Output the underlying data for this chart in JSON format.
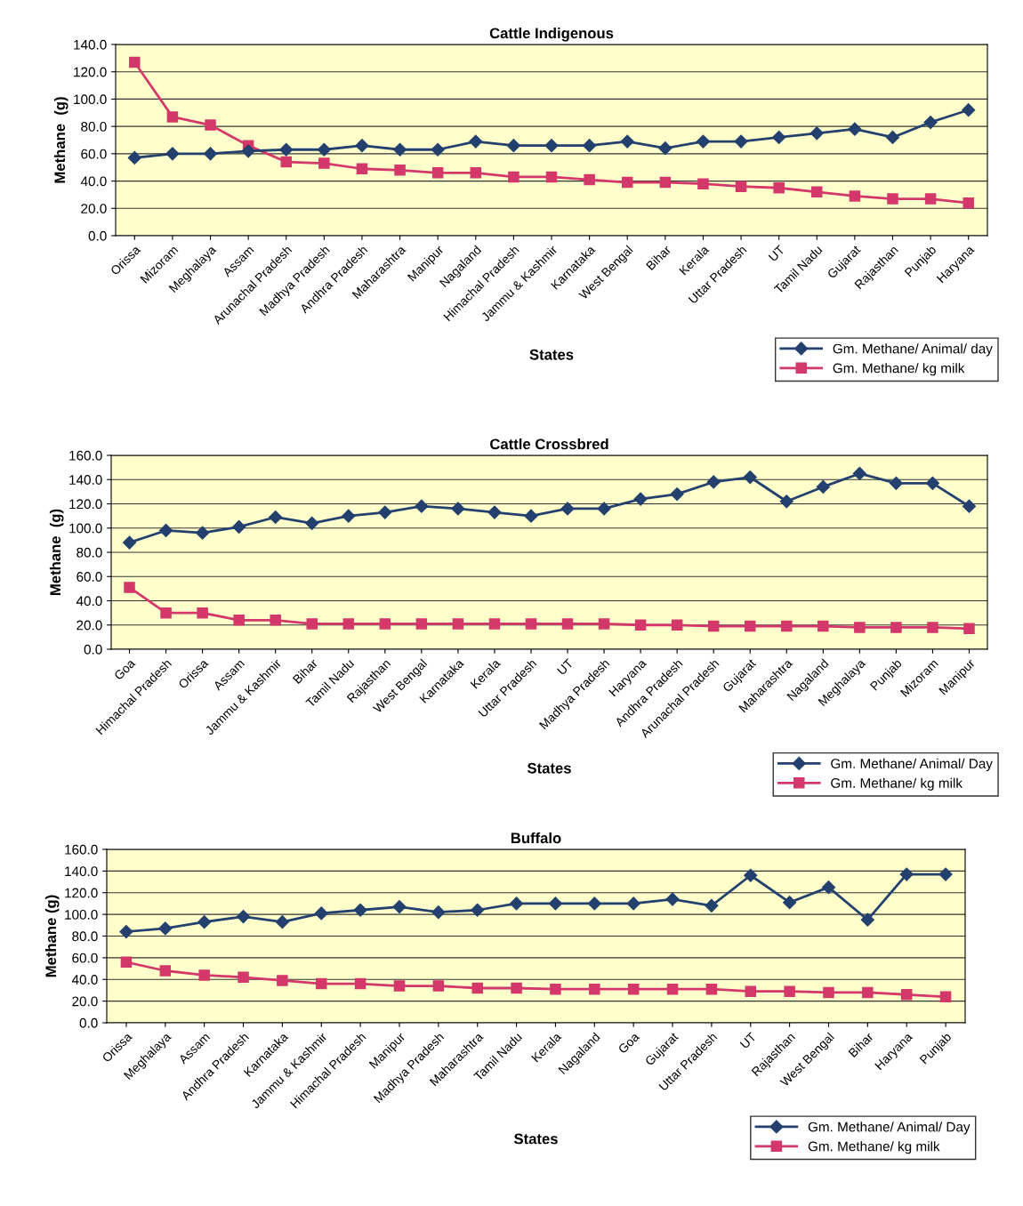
{
  "chart_data": [
    {
      "type": "line",
      "title": "Cattle Indigenous",
      "xlabel": "States",
      "ylabel": "Methane  (g)",
      "legend": "bottom right",
      "grid": "y",
      "ylim": [
        0,
        140
      ],
      "yticks": [
        {
          "value": 0,
          "label": "0.0"
        },
        {
          "value": 20,
          "label": "20.0"
        },
        {
          "value": 40,
          "label": "40.0"
        },
        {
          "value": 60,
          "label": "60.0"
        },
        {
          "value": 80,
          "label": "80.0"
        },
        {
          "value": 100,
          "label": "100.0"
        },
        {
          "value": 120,
          "label": "120.0"
        },
        {
          "value": 140,
          "label": "140.0"
        }
      ],
      "categories": [
        "Orissa",
        "Mizoram",
        "Meghalaya",
        "Assam",
        "Arunachal Pradesh",
        "Madhya Pradesh",
        "Andhra Pradesh",
        "Maharashtra",
        "Manipur",
        "Nagaland",
        "Himachal Pradesh",
        "Jammu & Kashmir",
        "Karnataka",
        "West Bengal",
        "Bihar",
        "Kerala",
        "Uttar Pradesh",
        "UT",
        "Tamil Nadu",
        "Gujarat",
        "Rajasthan",
        "Punjab",
        "Haryana"
      ],
      "series": [
        {
          "name": "Gm. Methane/ Animal/ day",
          "color": "#23406e",
          "marker": "diamond",
          "values": [
            57,
            60,
            60,
            62,
            63,
            63,
            66,
            63,
            63,
            69,
            66,
            66,
            66,
            69,
            64,
            69,
            69,
            72,
            75,
            78,
            72,
            83,
            92
          ]
        },
        {
          "name": "Gm. Methane/ kg milk",
          "color": "#d4386a",
          "marker": "square",
          "values": [
            127,
            87,
            81,
            66,
            54,
            53,
            49,
            48,
            46,
            46,
            43,
            43,
            41,
            39,
            39,
            38,
            36,
            35,
            32,
            29,
            27,
            27,
            24
          ]
        }
      ]
    },
    {
      "type": "line",
      "title": "Cattle Crossbred",
      "xlabel": "States",
      "ylabel": "Methane  (g)",
      "legend": "bottom right",
      "grid": "y",
      "ylim": [
        0,
        160
      ],
      "yticks": [
        {
          "value": 0,
          "label": "0.0"
        },
        {
          "value": 20,
          "label": "20.0"
        },
        {
          "value": 40,
          "label": "40.0"
        },
        {
          "value": 60,
          "label": "60.0"
        },
        {
          "value": 80,
          "label": "80.0"
        },
        {
          "value": 100,
          "label": "100.0"
        },
        {
          "value": 120,
          "label": "120.0"
        },
        {
          "value": 140,
          "label": "140.0"
        },
        {
          "value": 160,
          "label": "160.0"
        }
      ],
      "categories": [
        "Goa",
        "Himachal Pradesh",
        "Orissa",
        "Assam",
        "Jammu & Kashmir",
        "Bihar",
        "Tamil Nadu",
        "Rajasthan",
        "West Bengal",
        "Karnataka",
        "Kerala",
        "Uttar Pradesh",
        "UT",
        "Madhya Pradesh",
        "Haryana",
        "Andhra Pradesh",
        "Arunachal Pradesh",
        "Gujarat",
        "Maharashtra",
        "Nagaland",
        "Meghalaya",
        "Punjab",
        "Mizoram",
        "Manipur"
      ],
      "series": [
        {
          "name": "Gm. Methane/ Animal/ Day",
          "color": "#23406e",
          "marker": "diamond",
          "values": [
            88,
            98,
            96,
            101,
            109,
            104,
            110,
            113,
            118,
            116,
            113,
            110,
            116,
            116,
            124,
            128,
            138,
            142,
            122,
            134,
            145,
            137,
            137,
            118
          ]
        },
        {
          "name": "Gm. Methane/ kg milk",
          "color": "#d4386a",
          "marker": "square",
          "values": [
            51,
            30,
            30,
            24,
            24,
            21,
            21,
            21,
            21,
            21,
            21,
            21,
            21,
            21,
            20,
            20,
            19,
            19,
            19,
            19,
            18,
            18,
            18,
            17
          ]
        }
      ]
    },
    {
      "type": "line",
      "title": "Buffalo",
      "xlabel": "States",
      "ylabel": "Methane (g)",
      "legend": "bottom right",
      "grid": "y",
      "ylim": [
        0,
        160
      ],
      "yticks": [
        {
          "value": 0,
          "label": "0.0"
        },
        {
          "value": 20,
          "label": "20.0"
        },
        {
          "value": 40,
          "label": "40.0"
        },
        {
          "value": 60,
          "label": "60.0"
        },
        {
          "value": 80,
          "label": "80.0"
        },
        {
          "value": 100,
          "label": "100.0"
        },
        {
          "value": 120,
          "label": "120.0"
        },
        {
          "value": 140,
          "label": "140.0"
        },
        {
          "value": 160,
          "label": "160.0"
        }
      ],
      "categories": [
        "Orissa",
        "Meghalaya",
        "Assam",
        "Andhra Pradesh",
        "Karnataka",
        "Jammu & Kashmir",
        "Himachal Pradesh",
        "Manipur",
        "Madhya Pradesh",
        "Maharashtra",
        "Tamil Nadu",
        "Kerala",
        "Nagaland",
        "Goa",
        "Gujarat",
        "Uttar Pradesh",
        "UT",
        "Rajasthan",
        "West Bengal",
        "Bihar",
        "Haryana",
        "Punjab"
      ],
      "series": [
        {
          "name": "Gm. Methane/ Animal/ Day",
          "color": "#23406e",
          "marker": "diamond",
          "values": [
            84,
            87,
            93,
            98,
            93,
            101,
            104,
            107,
            102,
            104,
            110,
            110,
            110,
            110,
            114,
            108,
            136,
            111,
            125,
            95,
            137,
            137
          ]
        },
        {
          "name": "Gm. Methane/ kg milk",
          "color": "#d4386a",
          "marker": "square",
          "values": [
            56,
            48,
            44,
            42,
            39,
            36,
            36,
            34,
            34,
            32,
            32,
            31,
            31,
            31,
            31,
            31,
            29,
            29,
            28,
            28,
            26,
            24
          ]
        }
      ]
    }
  ]
}
